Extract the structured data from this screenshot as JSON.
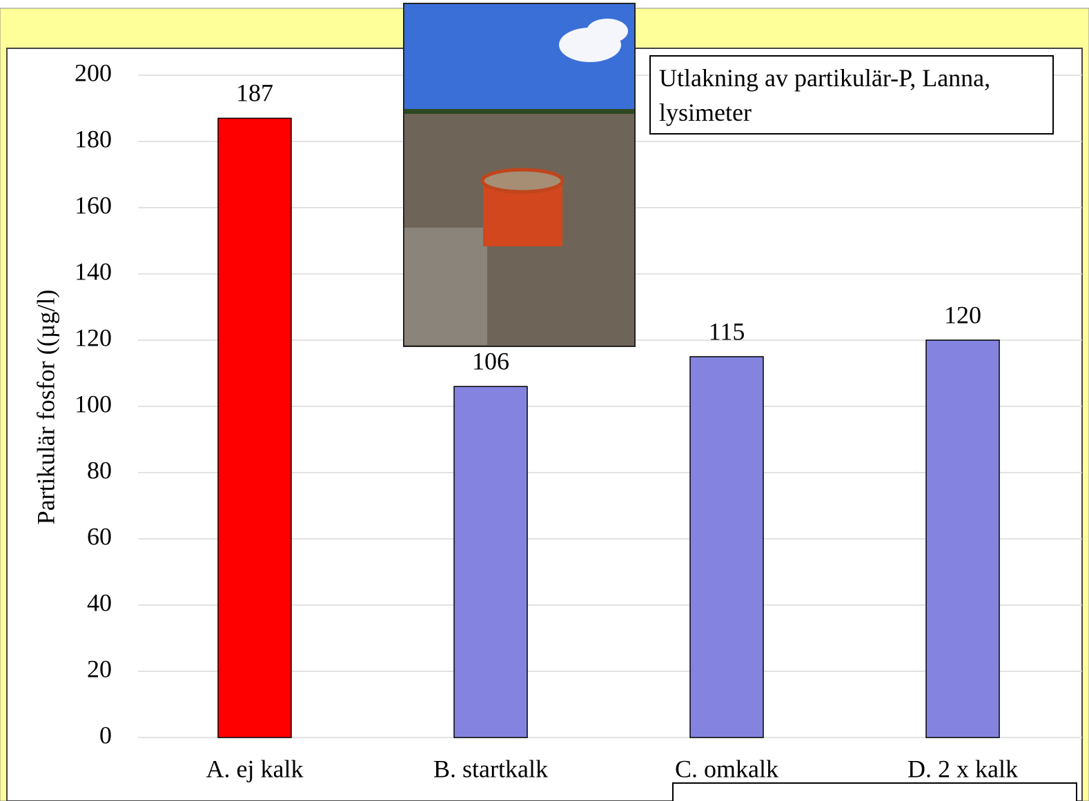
{
  "chart_data": {
    "type": "bar",
    "y_label": "Partikulär fosfor ((µg/l)",
    "annotation": "Utlakning av partikulär-P, Lanna, lysimeter",
    "categories": [
      "A. ej kalk",
      "B. startkalk",
      "C. omkalk",
      "D. 2 x kalk"
    ],
    "values": [
      187,
      106,
      115,
      120
    ],
    "colors": [
      "#ff0000",
      "#8484e0",
      "#8484e0",
      "#8484e0"
    ],
    "ylim": [
      0,
      200
    ],
    "yticks": [
      0,
      20,
      40,
      60,
      80,
      100,
      120,
      140,
      160,
      180,
      200
    ],
    "grid": true
  }
}
